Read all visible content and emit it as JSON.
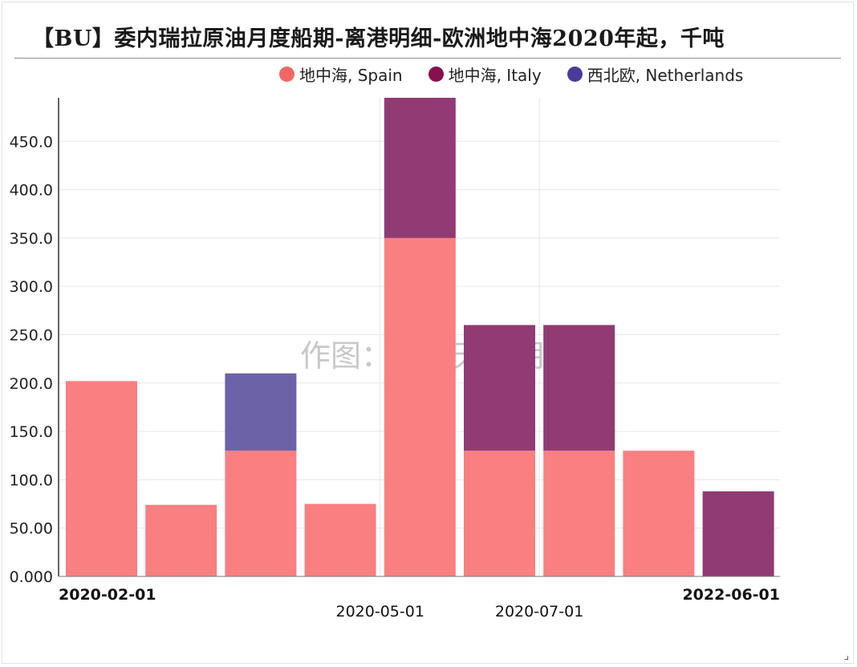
{
  "title": "【BU】委内瑞拉原油月度船期-离港明细-欧洲地中海2020年起，千吨",
  "watermark": "作图：紫金天风期货",
  "colors": {
    "spain": "#f97f80",
    "italy": "#913a74",
    "netherlands": "#6c62a8",
    "legend_spain": "#f26666",
    "legend_italy": "#87104f",
    "legend_netherlands": "#4b3b98"
  },
  "legend": [
    {
      "label": "地中海, Spain",
      "color_key": "legend_spain"
    },
    {
      "label": "地中海, Italy",
      "color_key": "legend_italy"
    },
    {
      "label": "西北欧, Netherlands",
      "color_key": "legend_netherlands"
    }
  ],
  "chart_data": {
    "type": "bar",
    "stacked": true,
    "title": "【BU】委内瑞拉原油月度船期-离港明细-欧洲地中海2020年起，千吨",
    "ylim": [
      0,
      495
    ],
    "y_ticks": [
      "0.000",
      "50.00",
      "100.0",
      "150.0",
      "200.0",
      "250.0",
      "300.0",
      "350.0",
      "400.0",
      "450.0"
    ],
    "y_tick_values": [
      0,
      50,
      100,
      150,
      200,
      250,
      300,
      350,
      400,
      450
    ],
    "x_tick_labels": [
      {
        "label": "2020-02-01",
        "bold": true,
        "row": 1,
        "bar": 0
      },
      {
        "label": "2020-05-01",
        "bold": false,
        "row": 2,
        "bar": 3
      },
      {
        "label": "2020-07-01",
        "bold": false,
        "row": 2,
        "bar": 5
      },
      {
        "label": "2022-06-01",
        "bold": true,
        "row": 1,
        "bar": 8
      }
    ],
    "bar_count": 9,
    "series": [
      {
        "name": "地中海, Spain",
        "color_key": "spain",
        "values": [
          202,
          74,
          130,
          75,
          350,
          130,
          130,
          130,
          0
        ]
      },
      {
        "name": "地中海, Italy",
        "color_key": "italy",
        "values": [
          0,
          0,
          0,
          0,
          145,
          130,
          130,
          0,
          88
        ]
      },
      {
        "name": "西北欧, Netherlands",
        "color_key": "netherlands",
        "values": [
          0,
          0,
          80,
          0,
          0,
          0,
          0,
          0,
          0
        ]
      }
    ],
    "grid": true
  }
}
